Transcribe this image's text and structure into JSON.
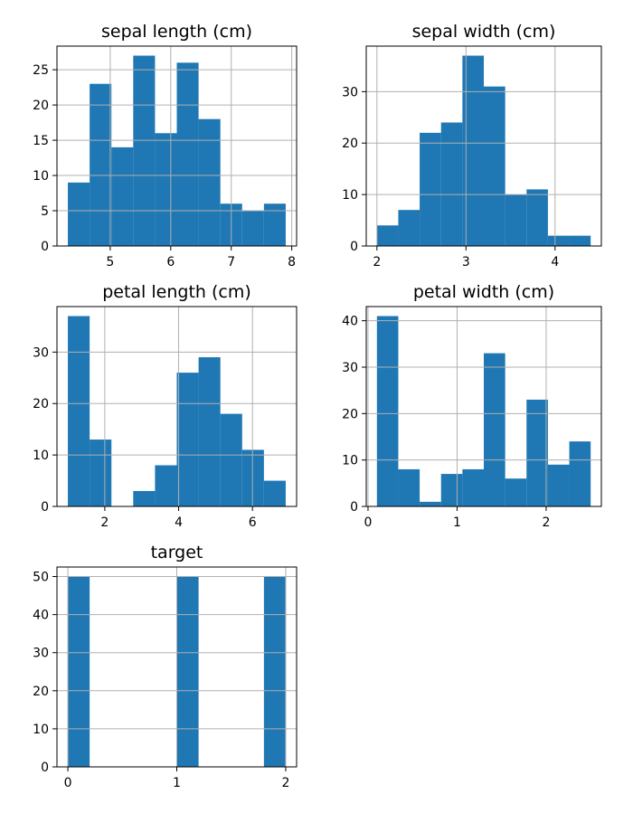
{
  "chart_data": [
    {
      "type": "bar",
      "title": "sepal length (cm)",
      "bin_edges": [
        4.3,
        4.66,
        5.02,
        5.38,
        5.74,
        6.1,
        6.46,
        6.82,
        7.18,
        7.54,
        7.9
      ],
      "values": [
        9,
        23,
        14,
        27,
        16,
        26,
        18,
        6,
        5,
        6
      ],
      "xlim": [
        4.12,
        8.08
      ],
      "ylim": [
        0,
        28.35
      ],
      "xticks": [
        5,
        6,
        7,
        8
      ],
      "yticks": [
        0,
        5,
        10,
        15,
        20,
        25
      ],
      "grid": true,
      "color": "#1f77b4"
    },
    {
      "type": "bar",
      "title": "sepal width (cm)",
      "bin_edges": [
        2.0,
        2.24,
        2.48,
        2.72,
        2.96,
        3.2,
        3.44,
        3.68,
        3.92,
        4.16,
        4.4
      ],
      "values": [
        4,
        7,
        22,
        24,
        37,
        31,
        10,
        11,
        2,
        2
      ],
      "xlim": [
        1.88,
        4.52
      ],
      "ylim": [
        0,
        38.85
      ],
      "xticks": [
        2,
        3,
        4
      ],
      "yticks": [
        0,
        10,
        20,
        30
      ],
      "grid": true,
      "color": "#1f77b4"
    },
    {
      "type": "bar",
      "title": "petal length (cm)",
      "bin_edges": [
        1.0,
        1.59,
        2.18,
        2.77,
        3.36,
        3.95,
        4.54,
        5.13,
        5.72,
        6.31,
        6.9
      ],
      "values": [
        37,
        13,
        0,
        3,
        8,
        26,
        29,
        18,
        11,
        5
      ],
      "xlim": [
        0.705,
        7.195
      ],
      "ylim": [
        0,
        38.85
      ],
      "xticks": [
        2,
        4,
        6
      ],
      "yticks": [
        0,
        10,
        20,
        30
      ],
      "grid": true,
      "color": "#1f77b4"
    },
    {
      "type": "bar",
      "title": "petal width (cm)",
      "bin_edges": [
        0.1,
        0.34,
        0.58,
        0.82,
        1.06,
        1.3,
        1.54,
        1.78,
        2.02,
        2.26,
        2.5
      ],
      "values": [
        41,
        8,
        1,
        7,
        8,
        33,
        6,
        23,
        9,
        14
      ],
      "xlim": [
        -0.02,
        2.62
      ],
      "ylim": [
        0,
        43.05
      ],
      "xticks": [
        0,
        1,
        2
      ],
      "yticks": [
        0,
        10,
        20,
        30,
        40
      ],
      "grid": true,
      "color": "#1f77b4"
    },
    {
      "type": "bar",
      "title": "target",
      "bin_edges": [
        0.0,
        0.2,
        0.4,
        0.6,
        0.8,
        1.0,
        1.2,
        1.4,
        1.6,
        1.8,
        2.0
      ],
      "values": [
        50,
        0,
        0,
        0,
        0,
        50,
        0,
        0,
        0,
        50
      ],
      "xlim": [
        -0.1,
        2.1
      ],
      "ylim": [
        0,
        52.5
      ],
      "xticks": [
        0,
        1,
        2
      ],
      "yticks": [
        0,
        10,
        20,
        30,
        40,
        50
      ],
      "grid": true,
      "color": "#1f77b4"
    }
  ]
}
